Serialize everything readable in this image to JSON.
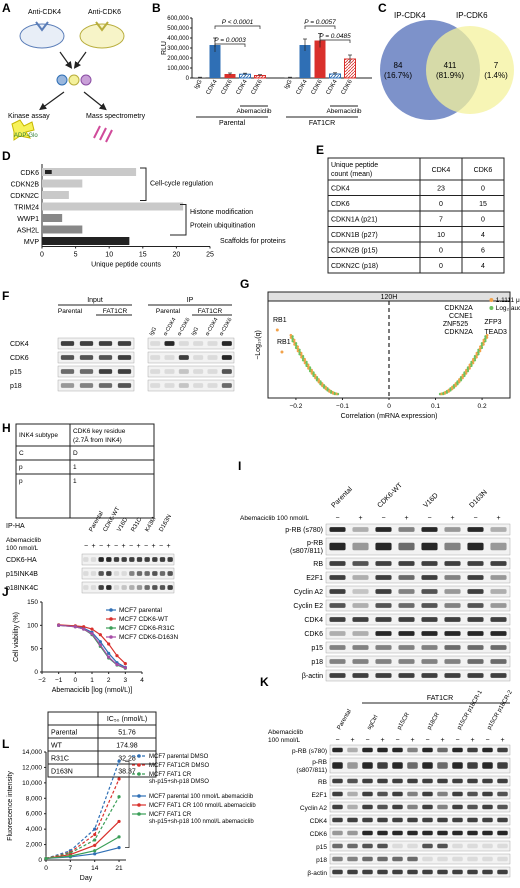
{
  "panels": {
    "A": "A",
    "B": "B",
    "C": "C",
    "D": "D",
    "E": "E",
    "F": "F",
    "G": "G",
    "H": "H",
    "I": "I",
    "J": "J",
    "K": "K",
    "L": "L"
  },
  "colors": {
    "blue": "#2f6fb5",
    "red": "#d9302c",
    "lightblue": "#9ab7dd",
    "lightred": "#efa3a0",
    "venn_blue": "#6f86c4",
    "venn_yellow": "#f4f19c",
    "gray": "#c9c9c9",
    "dark": "#222222",
    "orange": "#f2a24a",
    "green": "#6cc35e"
  },
  "a": {
    "anti_cdk4": "Anti-CDK4",
    "anti_cdk6": "Anti-CDK6",
    "kinase_assay": "Kinase assay",
    "adp_glo": "ADP-Glo",
    "mass_spec": "Mass spectrometry"
  },
  "b": {
    "chart_data": {
      "type": "bar",
      "ylabel": "RLU",
      "yticks": [
        "0",
        "100,000",
        "200,000",
        "300,000",
        "400,000",
        "500,000",
        "600,000"
      ],
      "ylim": [
        0,
        600000
      ],
      "categories": [
        "IgG",
        "CDK4",
        "CDK6",
        "CDK4",
        "CDK6",
        "IgG",
        "CDK4",
        "CDK6",
        "CDK4",
        "CDK6"
      ],
      "values": [
        5000,
        330000,
        40000,
        38000,
        25000,
        5000,
        330000,
        375000,
        40000,
        190000
      ],
      "errors": [
        3000,
        70000,
        10000,
        10000,
        8000,
        3000,
        60000,
        70000,
        12000,
        40000
      ],
      "p_values": [
        "P = 0.0003",
        "P < 0.0001",
        "P = 0.0057",
        "P = 0.0485"
      ],
      "group_label": "Abemaciclib",
      "groups": [
        "Parental",
        "FAT1CR"
      ]
    }
  },
  "c": {
    "left_label": "IP-CDK4",
    "right_label": "IP-CDK6",
    "left_only": "84",
    "left_only_pct": "(16.7%)",
    "both": "411",
    "both_pct": "(81.9%)",
    "right_only": "7",
    "right_only_pct": "(1.4%)"
  },
  "d": {
    "chart_data": {
      "type": "bar",
      "orientation": "horizontal",
      "xlabel": "Unique peptide counts",
      "xticks": [
        "0",
        "5",
        "10",
        "15",
        "20",
        "25"
      ],
      "xlim": [
        0,
        25
      ],
      "categories": [
        "CDK6",
        "CDKN2B",
        "CDKN2C",
        "TRIM24",
        "WWP1",
        "ASH2L",
        "MVP"
      ],
      "series": [
        {
          "values": [
            14,
            6,
            4,
            21,
            3,
            6,
            13
          ]
        },
        {
          "values": [
            1,
            0,
            0,
            0,
            0,
            0,
            13
          ]
        }
      ],
      "annotations": [
        "Cell-cycle regulation",
        "Histone modification",
        "Protein ubiquitination",
        "Scaffolds for proteins"
      ]
    }
  },
  "e": {
    "header": [
      "Unique peptide count (mean)",
      "CDK4",
      "CDK6"
    ],
    "rows": [
      [
        "CDK4",
        "23",
        "0"
      ],
      [
        "CDK6",
        "0",
        "15"
      ],
      [
        "CDKN1A (p21)",
        "7",
        "0"
      ],
      [
        "CDKN1B (p27)",
        "10",
        "4"
      ],
      [
        "CDKN2B (p15)",
        "0",
        "6"
      ],
      [
        "CDKN2C (p18)",
        "0",
        "4"
      ]
    ]
  },
  "f": {
    "input": "Input",
    "ip": "IP",
    "parental": "Parental",
    "fat1cr": "FAT1CR",
    "lanes": [
      "IgG",
      "α-CDK4",
      "α-CDK6",
      "IgG",
      "α-CDK4",
      "α-CDK6"
    ],
    "rows": [
      "CDK4",
      "CDK6",
      "p15",
      "p18"
    ]
  },
  "g": {
    "title": "120H",
    "ylabel": "−Log₁₀(q)",
    "xlabel": "Correlation (mRNA expression)",
    "xticks": [
      "−0.2",
      "−0.1",
      "0",
      "0.1",
      "0.2"
    ],
    "legend": [
      "1.1111 μmol/L",
      "Log₂.auc"
    ],
    "genes_left": [
      "RB1",
      "RB1"
    ],
    "genes_right": [
      "CDKN2A",
      "CCNE1",
      "ZNF525",
      "ZFP3",
      "CDKN2A",
      "TEAD3"
    ]
  },
  "h": {
    "header": [
      "INK4 subtype",
      "CDK6 key residue (2.7Å from INK4)"
    ],
    "rows": [
      "CDK6-HA",
      "p15INK4B",
      "p18INK4C"
    ],
    "ip_ha": "IP-HA",
    "abema": "Abemaciclib 100 nmol/L",
    "lanes": [
      "Parental",
      "CDK6-WT",
      "V16D",
      "R31C",
      "K43M",
      "D163N"
    ]
  },
  "i": {
    "abema": "Abemaciclib 100 nmol/L",
    "lanes": [
      "Parental",
      "CDK6-WT",
      "V16D",
      "D163N"
    ],
    "rows": [
      "p-RB (s780)",
      "p-RB (s807/811)",
      "RB",
      "E2F1",
      "Cyclin A2",
      "Cyclin E2",
      "CDK4",
      "CDK6",
      "p15",
      "p18",
      "β-actin"
    ]
  },
  "j": {
    "chart_data": {
      "type": "line",
      "ylabel": "Cell viability (%)",
      "xlabel": "Abemaciclib [log (nmol/L)]",
      "xticks": [
        "−2",
        "−1",
        "0",
        "1",
        "2",
        "3",
        "4"
      ],
      "xlim": [
        -2,
        4
      ],
      "yticks": [
        "0",
        "50",
        "100",
        "150"
      ],
      "ylim": [
        0,
        150
      ],
      "series": [
        {
          "name": "MCF7 parental",
          "color": "#2f6fb5",
          "x": [
            -1,
            0,
            0.5,
            1,
            1.5,
            2,
            2.5,
            3
          ],
          "y": [
            100,
            98,
            94,
            85,
            65,
            40,
            20,
            10
          ]
        },
        {
          "name": "MCF7 CDK6-WT",
          "color": "#d9302c",
          "x": [
            -1,
            0,
            0.5,
            1,
            1.5,
            2,
            2.5,
            3
          ],
          "y": [
            101,
            99,
            97,
            92,
            80,
            60,
            35,
            18
          ]
        },
        {
          "name": "MCF7 CDK6-R31C",
          "color": "#3a9e57",
          "x": [
            -1,
            0,
            0.5,
            1,
            1.5,
            2,
            2.5,
            3
          ],
          "y": [
            100,
            97,
            92,
            80,
            55,
            30,
            15,
            8
          ]
        },
        {
          "name": "MCF7 CDK6-D163N",
          "color": "#a64ca6",
          "x": [
            -1,
            0,
            0.5,
            1,
            1.5,
            2,
            2.5,
            3
          ],
          "y": [
            100,
            97,
            92,
            82,
            58,
            32,
            16,
            9
          ]
        }
      ]
    },
    "ic50_header": "IC₅₀ (nmol/L)",
    "ic50_rows": [
      [
        "Parental",
        "51.76"
      ],
      [
        "WT",
        "174.98"
      ],
      [
        "R31C",
        "32.28"
      ],
      [
        "D163N",
        "38.37"
      ]
    ]
  },
  "k": {
    "fat1cr": "FAT1CR",
    "abema": "Abemaciclib 100 nmol/L",
    "lanes": [
      "Parental",
      "sgCtrl",
      "p15CR",
      "p18CR",
      "p15CR p18CR-1",
      "p15CR p18CR-2"
    ],
    "rows": [
      "p-RB (s780)",
      "p-RB (s807/811)",
      "RB",
      "E2F1",
      "Cyclin A2",
      "CDK4",
      "CDK6",
      "p15",
      "p18",
      "β-actin"
    ]
  },
  "l": {
    "chart_data": {
      "type": "line",
      "ylabel": "Fluorescence intensity",
      "xlabel": "Day",
      "xticks": [
        "0",
        "7",
        "14",
        "21"
      ],
      "xlim": [
        0,
        23
      ],
      "yticks": [
        "0",
        "2,000",
        "4,000",
        "6,000",
        "8,000",
        "10,000",
        "12,000",
        "14,000"
      ],
      "ylim": [
        0,
        14000
      ],
      "series": [
        {
          "name": "MCF7 parental DMSO",
          "color": "#2f6fb5",
          "dash": true,
          "x": [
            0,
            7,
            14,
            21
          ],
          "y": [
            200,
            1200,
            4000,
            12800
          ]
        },
        {
          "name": "MCF7 FAT1CR DMSO",
          "color": "#d9302c",
          "dash": true,
          "x": [
            0,
            7,
            14,
            21
          ],
          "y": [
            200,
            1000,
            3300,
            10500
          ]
        },
        {
          "name": "MCF7 FAT1 CR sh-p15+sh-p18 DMSO",
          "color": "#3a9e57",
          "dash": true,
          "x": [
            0,
            7,
            14,
            21
          ],
          "y": [
            200,
            900,
            2600,
            8200
          ]
        },
        {
          "name": "MCF7 parental 100 nmol/L abemaciclib",
          "color": "#2f6fb5",
          "dash": false,
          "x": [
            0,
            7,
            14,
            21
          ],
          "y": [
            200,
            400,
            800,
            1600
          ]
        },
        {
          "name": "MCF7 FAT1 CR 100 nmol/L abemaciclib",
          "color": "#d9302c",
          "dash": false,
          "x": [
            0,
            7,
            14,
            21
          ],
          "y": [
            200,
            700,
            1900,
            5000
          ]
        },
        {
          "name": "MCF7 FAT1 CR sh-p15+sh-p18 100 nmol/L abemaciclib",
          "color": "#3a9e57",
          "dash": false,
          "x": [
            0,
            7,
            14,
            21
          ],
          "y": [
            200,
            500,
            1200,
            3000
          ]
        }
      ]
    }
  }
}
